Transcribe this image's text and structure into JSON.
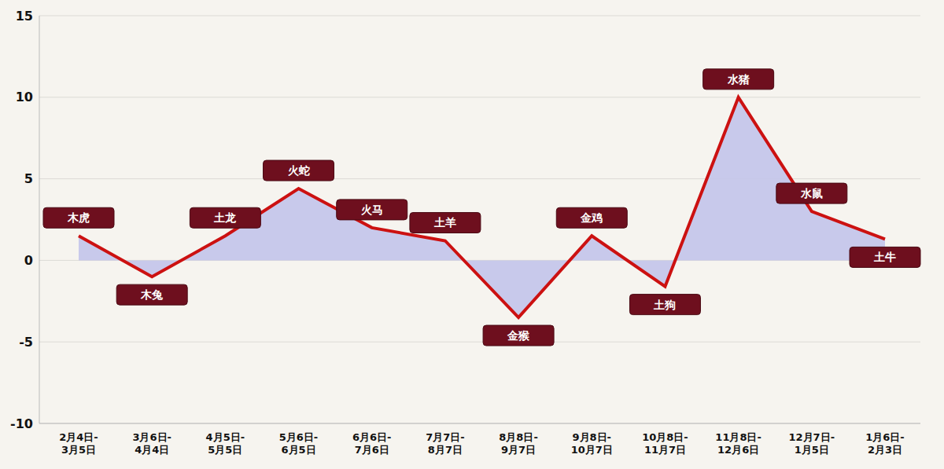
{
  "chart_data": {
    "type": "line",
    "categories": [
      "2月4日-3月5日",
      "3月6日-4月4日",
      "4月5日-5月5日",
      "5月6日-6月5日",
      "6月6日-7月6日",
      "7月7日-8月7日",
      "8月8日-9月7日",
      "9月8日-10月7日",
      "10月8日-11月7日",
      "11月8日-12月6日",
      "12月7日-1月5日",
      "1月6日-2月3日"
    ],
    "values": [
      1.5,
      -1.0,
      1.5,
      4.4,
      2.0,
      1.2,
      -3.5,
      1.5,
      -1.6,
      10,
      3.0,
      1.3
    ],
    "annotations": [
      "木虎",
      "木兔",
      "土龙",
      "火蛇",
      "火马",
      "土羊",
      "金猴",
      "金鸡",
      "土狗",
      "水猪",
      "水鼠",
      "土牛"
    ],
    "color": "#cc1111",
    "ylim": [
      -10,
      15
    ],
    "yticks": [
      -10,
      -5,
      0,
      5,
      10,
      15
    ],
    "grid": true
  }
}
